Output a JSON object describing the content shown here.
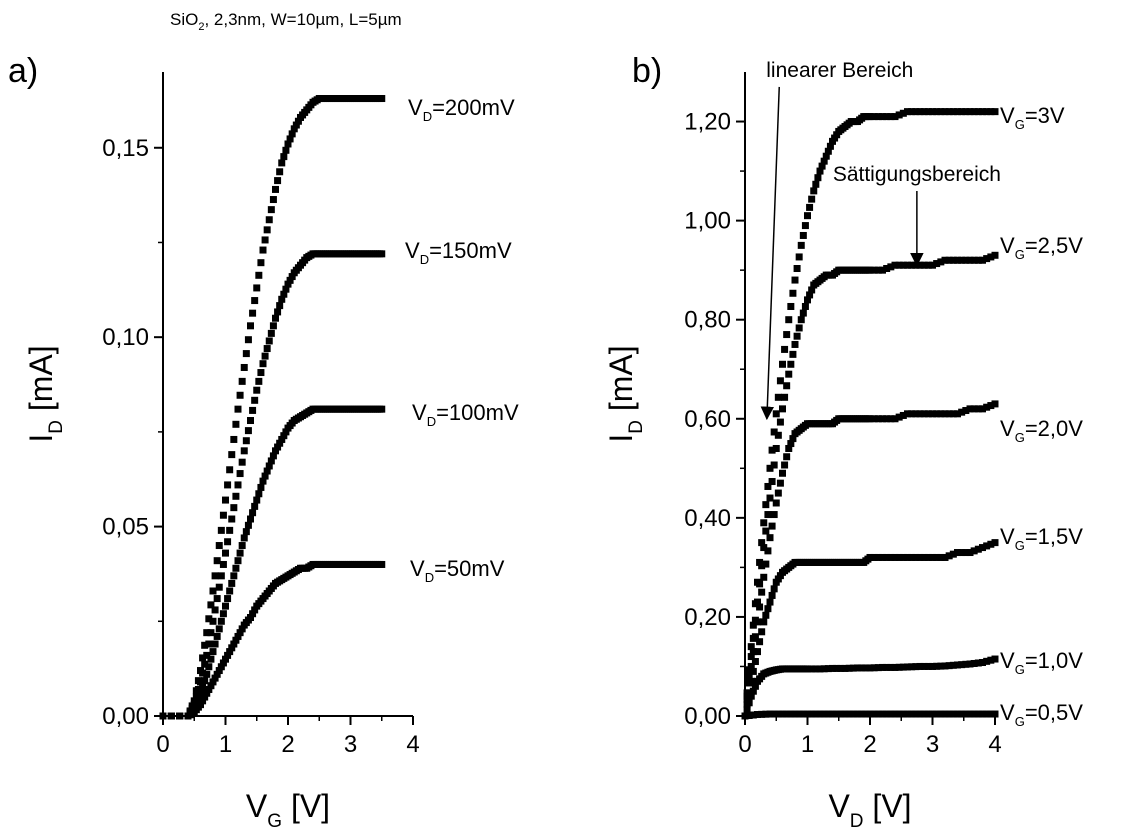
{
  "figure": {
    "subtitle": {
      "main": "SiO",
      "sub": "2",
      "rest": ", 2,3nm, W=10µm, L=5µm"
    }
  },
  "chart_data": [
    {
      "panel": "a)",
      "type": "scatter",
      "xlabel": {
        "main": "V",
        "sub": "G",
        "unit": " [V]"
      },
      "ylabel": {
        "main": "I",
        "sub": "D",
        "unit": " [mA]"
      },
      "xlim": [
        0,
        4
      ],
      "ylim": [
        0,
        0.17
      ],
      "xticks": [
        0,
        1,
        2,
        3,
        4
      ],
      "xtick_labels": [
        "0",
        "1",
        "2",
        "3",
        "4"
      ],
      "yticks": [
        0,
        0.05,
        0.1,
        0.15
      ],
      "ytick_labels": [
        "0,00",
        "0,05",
        "0,10",
        "0,15"
      ],
      "series": [
        {
          "name": "V_D=200mV",
          "label": {
            "main": "V",
            "sub": "D",
            "rest": "=200mV"
          },
          "x": [
            0.0,
            0.4,
            0.5,
            0.6,
            0.7,
            0.8,
            0.9,
            1.0,
            1.1,
            1.2,
            1.3,
            1.4,
            1.5,
            1.6,
            1.7,
            1.8,
            1.9,
            2.0,
            2.1,
            2.2,
            2.3,
            2.4,
            2.5,
            2.6,
            2.7,
            2.8,
            2.9,
            3.0,
            3.1,
            3.2,
            3.3,
            3.4,
            3.5
          ],
          "y": [
            0.0,
            0.0,
            0.004,
            0.012,
            0.022,
            0.033,
            0.045,
            0.057,
            0.069,
            0.081,
            0.092,
            0.103,
            0.113,
            0.123,
            0.131,
            0.139,
            0.146,
            0.151,
            0.155,
            0.158,
            0.16,
            0.162,
            0.163,
            0.163,
            0.163,
            0.163,
            0.163,
            0.163,
            0.163,
            0.163,
            0.163,
            0.163,
            0.163
          ]
        },
        {
          "name": "V_D=150mV",
          "label": {
            "main": "V",
            "sub": "D",
            "rest": "=150mV"
          },
          "x": [
            0.0,
            0.4,
            0.5,
            0.6,
            0.7,
            0.8,
            0.9,
            1.0,
            1.1,
            1.2,
            1.3,
            1.4,
            1.5,
            1.6,
            1.7,
            1.8,
            1.9,
            2.0,
            2.1,
            2.2,
            2.3,
            2.4,
            2.5,
            2.6,
            2.7,
            2.8,
            2.9,
            3.0,
            3.1,
            3.2,
            3.3,
            3.4,
            3.5
          ],
          "y": [
            0.0,
            0.0,
            0.003,
            0.009,
            0.016,
            0.025,
            0.034,
            0.043,
            0.052,
            0.061,
            0.07,
            0.078,
            0.086,
            0.093,
            0.099,
            0.105,
            0.11,
            0.114,
            0.117,
            0.119,
            0.121,
            0.122,
            0.122,
            0.122,
            0.122,
            0.122,
            0.122,
            0.122,
            0.122,
            0.122,
            0.122,
            0.122,
            0.122
          ]
        },
        {
          "name": "V_D=100mV",
          "label": {
            "main": "V",
            "sub": "D",
            "rest": "=100mV"
          },
          "x": [
            0.0,
            0.4,
            0.5,
            0.6,
            0.7,
            0.8,
            0.9,
            1.0,
            1.1,
            1.2,
            1.3,
            1.4,
            1.5,
            1.6,
            1.7,
            1.8,
            1.9,
            2.0,
            2.1,
            2.2,
            2.3,
            2.4,
            2.5,
            2.6,
            2.7,
            2.8,
            2.9,
            3.0,
            3.1,
            3.2,
            3.3,
            3.4,
            3.5
          ],
          "y": [
            0.0,
            0.0,
            0.002,
            0.006,
            0.011,
            0.017,
            0.023,
            0.029,
            0.035,
            0.041,
            0.047,
            0.052,
            0.057,
            0.062,
            0.066,
            0.07,
            0.073,
            0.076,
            0.078,
            0.079,
            0.08,
            0.081,
            0.081,
            0.081,
            0.081,
            0.081,
            0.081,
            0.081,
            0.081,
            0.081,
            0.081,
            0.081,
            0.081
          ]
        },
        {
          "name": "V_D=50mV",
          "label": {
            "main": "V",
            "sub": "D",
            "rest": "=50mV"
          },
          "x": [
            0.0,
            0.4,
            0.5,
            0.6,
            0.7,
            0.8,
            0.9,
            1.0,
            1.1,
            1.2,
            1.3,
            1.4,
            1.5,
            1.6,
            1.7,
            1.8,
            1.9,
            2.0,
            2.1,
            2.2,
            2.3,
            2.4,
            2.5,
            2.6,
            2.7,
            2.8,
            2.9,
            3.0,
            3.1,
            3.2,
            3.3,
            3.4,
            3.5
          ],
          "y": [
            0.0,
            0.0,
            0.001,
            0.003,
            0.006,
            0.009,
            0.012,
            0.015,
            0.018,
            0.021,
            0.024,
            0.026,
            0.029,
            0.031,
            0.033,
            0.035,
            0.036,
            0.037,
            0.038,
            0.039,
            0.039,
            0.04,
            0.04,
            0.04,
            0.04,
            0.04,
            0.04,
            0.04,
            0.04,
            0.04,
            0.04,
            0.04,
            0.04
          ]
        }
      ]
    },
    {
      "panel": "b)",
      "type": "scatter",
      "xlabel": {
        "main": "V",
        "sub": "D",
        "unit": " [V]"
      },
      "ylabel": {
        "main": "I",
        "sub": "D",
        "unit": " [mA]"
      },
      "xlim": [
        0,
        4
      ],
      "ylim": [
        0,
        1.3
      ],
      "xticks": [
        0,
        1,
        2,
        3,
        4
      ],
      "xtick_labels": [
        "0",
        "1",
        "2",
        "3",
        "4"
      ],
      "yticks": [
        0,
        0.2,
        0.4,
        0.6,
        0.8,
        1.0,
        1.2
      ],
      "ytick_labels": [
        "0,00",
        "0,20",
        "0,40",
        "0,60",
        "0,80",
        "1,00",
        "1,20"
      ],
      "annotations": [
        {
          "text": "linearer Bereich",
          "x": 0.5,
          "y": 1.29,
          "arrow_to": [
            0.35,
            0.6
          ]
        },
        {
          "text": "Sättigungsbereich",
          "x": 2.75,
          "y": 1.08,
          "arrow_to": [
            2.75,
            0.91
          ]
        }
      ],
      "series": [
        {
          "name": "V_G=3V",
          "label": {
            "main": "V",
            "sub": "G",
            "rest": "=3V"
          },
          "x": [
            0.0,
            0.1,
            0.2,
            0.3,
            0.4,
            0.5,
            0.6,
            0.7,
            0.8,
            0.9,
            1.0,
            1.1,
            1.2,
            1.3,
            1.4,
            1.5,
            1.6,
            1.7,
            1.8,
            1.9,
            2.0,
            2.2,
            2.4,
            2.6,
            2.8,
            3.0,
            3.2,
            3.4,
            3.6,
            3.8,
            4.0
          ],
          "y": [
            0.0,
            0.14,
            0.27,
            0.39,
            0.5,
            0.61,
            0.71,
            0.8,
            0.88,
            0.95,
            1.01,
            1.06,
            1.1,
            1.13,
            1.16,
            1.18,
            1.19,
            1.2,
            1.2,
            1.21,
            1.21,
            1.21,
            1.21,
            1.22,
            1.22,
            1.22,
            1.22,
            1.22,
            1.22,
            1.22,
            1.22
          ]
        },
        {
          "name": "V_G=2,5V",
          "label": {
            "main": "V",
            "sub": "G",
            "rest": "=2,5V"
          },
          "x": [
            0.0,
            0.1,
            0.2,
            0.3,
            0.4,
            0.5,
            0.6,
            0.7,
            0.8,
            0.9,
            1.0,
            1.1,
            1.2,
            1.3,
            1.4,
            1.5,
            1.6,
            1.7,
            1.8,
            1.9,
            2.0,
            2.2,
            2.4,
            2.6,
            2.8,
            3.0,
            3.2,
            3.4,
            3.6,
            3.8,
            4.0
          ],
          "y": [
            0.0,
            0.12,
            0.23,
            0.34,
            0.44,
            0.54,
            0.62,
            0.69,
            0.75,
            0.8,
            0.84,
            0.87,
            0.88,
            0.89,
            0.89,
            0.9,
            0.9,
            0.9,
            0.9,
            0.9,
            0.9,
            0.9,
            0.91,
            0.91,
            0.91,
            0.91,
            0.92,
            0.92,
            0.92,
            0.92,
            0.93
          ]
        },
        {
          "name": "V_G=2,0V",
          "label": {
            "main": "V",
            "sub": "G",
            "rest": "=2,0V"
          },
          "x": [
            0.0,
            0.1,
            0.2,
            0.3,
            0.4,
            0.5,
            0.6,
            0.7,
            0.8,
            0.9,
            1.0,
            1.1,
            1.2,
            1.3,
            1.4,
            1.5,
            1.6,
            1.7,
            1.8,
            1.9,
            2.0,
            2.2,
            2.4,
            2.6,
            2.8,
            3.0,
            3.2,
            3.4,
            3.6,
            3.8,
            4.0
          ],
          "y": [
            0.0,
            0.1,
            0.19,
            0.28,
            0.36,
            0.43,
            0.49,
            0.54,
            0.57,
            0.58,
            0.59,
            0.59,
            0.59,
            0.59,
            0.59,
            0.6,
            0.6,
            0.6,
            0.6,
            0.6,
            0.6,
            0.6,
            0.6,
            0.61,
            0.61,
            0.61,
            0.61,
            0.61,
            0.62,
            0.62,
            0.63
          ]
        },
        {
          "name": "V_G=1,5V",
          "label": {
            "main": "V",
            "sub": "G",
            "rest": "=1,5V"
          },
          "x": [
            0.0,
            0.1,
            0.2,
            0.3,
            0.4,
            0.5,
            0.6,
            0.7,
            0.8,
            0.9,
            1.0,
            1.1,
            1.2,
            1.3,
            1.4,
            1.5,
            1.6,
            1.7,
            1.8,
            1.9,
            2.0,
            2.2,
            2.4,
            2.6,
            2.8,
            3.0,
            3.2,
            3.4,
            3.6,
            3.8,
            4.0
          ],
          "y": [
            0.0,
            0.07,
            0.13,
            0.19,
            0.23,
            0.27,
            0.29,
            0.3,
            0.31,
            0.31,
            0.31,
            0.31,
            0.31,
            0.31,
            0.31,
            0.31,
            0.31,
            0.31,
            0.31,
            0.31,
            0.32,
            0.32,
            0.32,
            0.32,
            0.32,
            0.32,
            0.32,
            0.33,
            0.33,
            0.34,
            0.35
          ]
        },
        {
          "name": "V_G=1,0V",
          "label": {
            "main": "V",
            "sub": "G",
            "rest": "=1,0V"
          },
          "x": [
            0.0,
            0.1,
            0.2,
            0.3,
            0.4,
            0.5,
            0.6,
            0.7,
            0.8,
            0.9,
            1.0,
            1.2,
            1.4,
            1.6,
            1.8,
            2.0,
            2.2,
            2.4,
            2.6,
            2.8,
            3.0,
            3.2,
            3.4,
            3.6,
            3.8,
            4.0
          ],
          "y": [
            0.0,
            0.04,
            0.07,
            0.085,
            0.09,
            0.093,
            0.095,
            0.095,
            0.095,
            0.095,
            0.095,
            0.095,
            0.096,
            0.096,
            0.097,
            0.097,
            0.098,
            0.098,
            0.099,
            0.1,
            0.1,
            0.101,
            0.103,
            0.105,
            0.108,
            0.115
          ]
        },
        {
          "name": "V_G=0,5V",
          "label": {
            "main": "V",
            "sub": "G",
            "rest": "=0,5V"
          },
          "x": [
            0.0,
            0.2,
            0.4,
            0.6,
            0.8,
            1.0,
            1.2,
            1.4,
            1.6,
            1.8,
            2.0,
            2.2,
            2.4,
            2.6,
            2.8,
            3.0,
            3.2,
            3.4,
            3.6,
            3.8,
            4.0
          ],
          "y": [
            0.0,
            0.003,
            0.004,
            0.004,
            0.004,
            0.004,
            0.004,
            0.004,
            0.004,
            0.004,
            0.004,
            0.004,
            0.004,
            0.004,
            0.004,
            0.004,
            0.004,
            0.004,
            0.004,
            0.004,
            0.004
          ]
        }
      ]
    }
  ]
}
